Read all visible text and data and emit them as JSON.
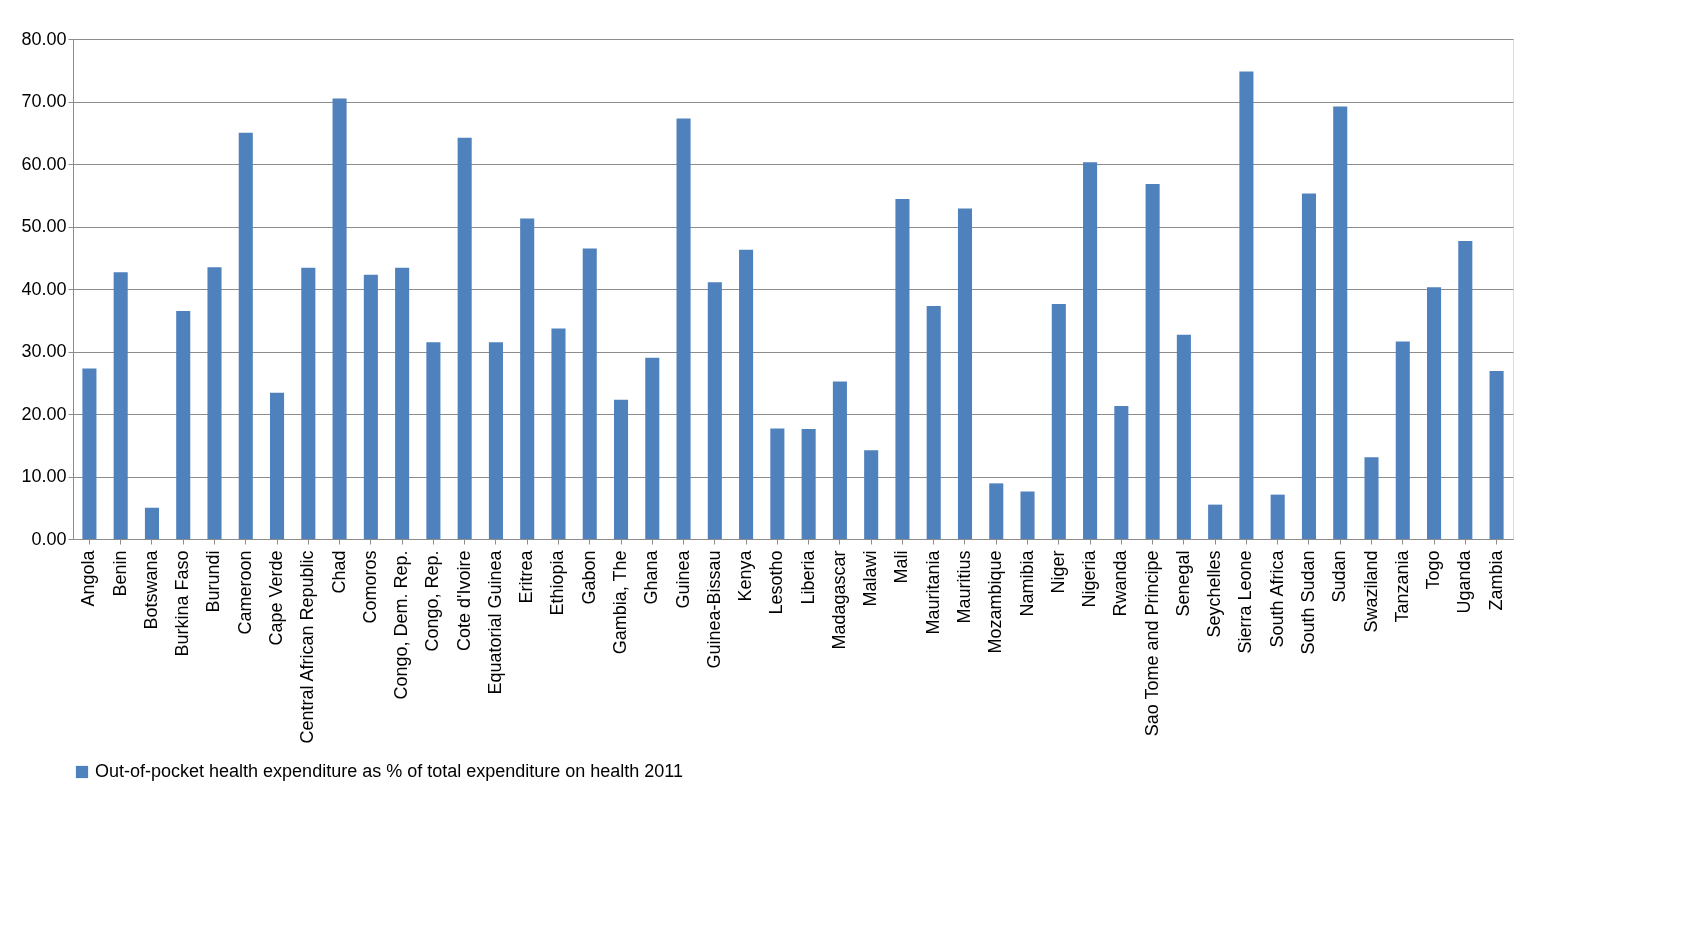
{
  "chart_data": {
    "type": "bar",
    "categories": [
      "Angola",
      "Benin",
      "Botswana",
      "Burkina Faso",
      "Burundi",
      "Cameroon",
      "Cape Verde",
      "Central African Republic",
      "Chad",
      "Comoros",
      "Congo, Dem. Rep.",
      "Congo, Rep.",
      "Cote d'Ivoire",
      "Equatorial Guinea",
      "Eritrea",
      "Ethiopia",
      "Gabon",
      "Gambia, The",
      "Ghana",
      "Guinea",
      "Guinea-Bissau",
      "Kenya",
      "Lesotho",
      "Liberia",
      "Madagascar",
      "Malawi",
      "Mali",
      "Mauritania",
      "Mauritius",
      "Mozambique",
      "Namibia",
      "Niger",
      "Nigeria",
      "Rwanda",
      "Sao Tome and Principe",
      "Senegal",
      "Seychelles",
      "Sierra Leone",
      "South Africa",
      "South Sudan",
      "Sudan",
      "Swaziland",
      "Tanzania",
      "Togo",
      "Uganda",
      "Zambia"
    ],
    "series": [
      {
        "name": "Out-of-pocket health expenditure as % of total expenditure on health 2011",
        "color": "#4f81bd",
        "values": [
          27.3,
          42.7,
          5.0,
          36.5,
          43.5,
          65.0,
          23.4,
          43.4,
          70.5,
          42.3,
          43.4,
          31.5,
          64.2,
          31.5,
          51.3,
          33.7,
          46.5,
          22.3,
          29.0,
          67.3,
          41.1,
          46.3,
          17.7,
          17.6,
          25.2,
          14.2,
          54.4,
          37.3,
          52.9,
          8.9,
          7.6,
          37.6,
          60.3,
          21.3,
          56.8,
          32.7,
          5.5,
          74.8,
          7.1,
          55.3,
          69.2,
          13.1,
          31.6,
          40.3,
          47.7,
          26.9
        ]
      }
    ],
    "ylim": [
      0,
      80
    ],
    "yticks": [
      {
        "value": 0,
        "label": "0.00"
      },
      {
        "value": 10,
        "label": "10.00"
      },
      {
        "value": 20,
        "label": "20.00"
      },
      {
        "value": 30,
        "label": "30.00"
      },
      {
        "value": 40,
        "label": "40.00"
      },
      {
        "value": 50,
        "label": "50.00"
      },
      {
        "value": 60,
        "label": "60.00"
      },
      {
        "value": 70,
        "label": "70.00"
      },
      {
        "value": 80,
        "label": "80.00"
      }
    ],
    "grid": "y",
    "legend": "bottom"
  }
}
